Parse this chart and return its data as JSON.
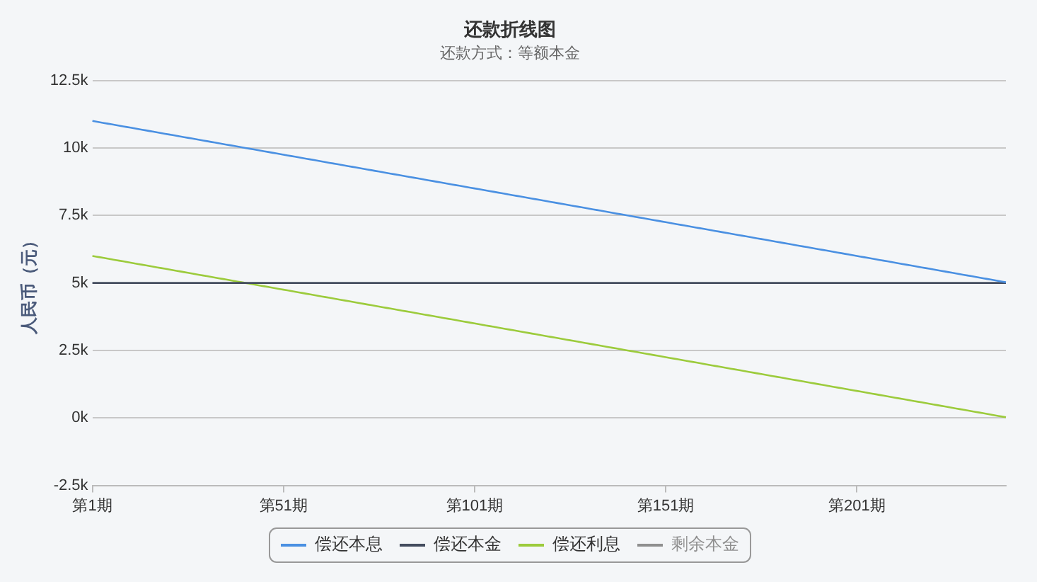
{
  "chart_data": {
    "type": "line",
    "title": "还款折线图",
    "subtitle": "还款方式：等额本金",
    "ylabel": "人民币（元）",
    "categories": [
      "第1期",
      null,
      null,
      null,
      null,
      null,
      null,
      null,
      null,
      null,
      null,
      null,
      null,
      null,
      null,
      null,
      null,
      null,
      null,
      null,
      null,
      null,
      null,
      null,
      null,
      null,
      null,
      null,
      null,
      null,
      null,
      null,
      null,
      null,
      null,
      null,
      null,
      null,
      null,
      null,
      null,
      null,
      null,
      null,
      null,
      null,
      null,
      null,
      null,
      null,
      "第51期",
      null,
      null,
      null,
      null,
      null,
      null,
      null,
      null,
      null,
      null,
      null,
      null,
      null,
      null,
      null,
      null,
      null,
      null,
      null,
      null,
      null,
      null,
      null,
      null,
      null,
      null,
      null,
      null,
      null,
      null,
      null,
      null,
      null,
      null,
      null,
      null,
      null,
      null,
      null,
      null,
      null,
      null,
      null,
      null,
      null,
      null,
      null,
      null,
      null,
      "第101期",
      null,
      null,
      null,
      null,
      null,
      null,
      null,
      null,
      null,
      null,
      null,
      null,
      null,
      null,
      null,
      null,
      null,
      null,
      null,
      null,
      null,
      null,
      null,
      null,
      null,
      null,
      null,
      null,
      null,
      null,
      null,
      null,
      null,
      null,
      null,
      null,
      null,
      null,
      null,
      null,
      null,
      null,
      null,
      null,
      null,
      null,
      null,
      null,
      null,
      "第151期",
      null,
      null,
      null,
      null,
      null,
      null,
      null,
      null,
      null,
      null,
      null,
      null,
      null,
      null,
      null,
      null,
      null,
      null,
      null,
      null,
      null,
      null,
      null,
      null,
      null,
      null,
      null,
      null,
      null,
      null,
      null,
      null,
      null,
      null,
      null,
      null,
      null,
      null,
      null,
      null,
      null,
      null,
      null,
      null,
      null,
      null,
      null,
      null,
      null,
      "第201期",
      null,
      null,
      null,
      null,
      null,
      null,
      null,
      null,
      null,
      null,
      null,
      null,
      null,
      null,
      null,
      null,
      null,
      null,
      null,
      null,
      null,
      null,
      null,
      null,
      null,
      null,
      null,
      null,
      null,
      null,
      null,
      null,
      null,
      null,
      null,
      null,
      null,
      null,
      null
    ],
    "ylim": [
      -2500,
      12500
    ],
    "yticks": [
      {
        "value": -2500,
        "label": "-2.5k"
      },
      {
        "value": 0,
        "label": "0k"
      },
      {
        "value": 2500,
        "label": "2.5k"
      },
      {
        "value": 5000,
        "label": "5k"
      },
      {
        "value": 7500,
        "label": "7.5k"
      },
      {
        "value": 10000,
        "label": "10k"
      },
      {
        "value": 12500,
        "label": "12.5k"
      }
    ],
    "series": [
      {
        "name": "偿还本息",
        "color": "#4a90e2",
        "values": [
          11000,
          10975,
          10950,
          10925,
          10900,
          10875,
          10850,
          10825,
          10800,
          10775,
          10750,
          10725,
          10700,
          10675,
          10650,
          10625,
          10600,
          10575,
          10550,
          10525,
          10500,
          10475,
          10450,
          10425,
          10400,
          10375,
          10350,
          10325,
          10300,
          10275,
          10250,
          10225,
          10200,
          10175,
          10150,
          10125,
          10100,
          10075,
          10050,
          10025,
          10000,
          9975,
          9950,
          9925,
          9900,
          9875,
          9850,
          9825,
          9800,
          9775,
          9750,
          9725,
          9700,
          9675,
          9650,
          9625,
          9600,
          9575,
          9550,
          9525,
          9500,
          9475,
          9450,
          9425,
          9400,
          9375,
          9350,
          9325,
          9300,
          9275,
          9250,
          9225,
          9200,
          9175,
          9150,
          9125,
          9100,
          9075,
          9050,
          9025,
          9000,
          8975,
          8950,
          8925,
          8900,
          8875,
          8850,
          8825,
          8800,
          8775,
          8750,
          8725,
          8700,
          8675,
          8650,
          8625,
          8600,
          8575,
          8550,
          8525,
          8500,
          8475,
          8450,
          8425,
          8400,
          8375,
          8350,
          8325,
          8300,
          8275,
          8250,
          8225,
          8200,
          8175,
          8150,
          8125,
          8100,
          8075,
          8050,
          8025,
          8000,
          7975,
          7950,
          7925,
          7900,
          7875,
          7850,
          7825,
          7800,
          7775,
          7750,
          7725,
          7700,
          7675,
          7650,
          7625,
          7600,
          7575,
          7550,
          7525,
          7500,
          7475,
          7450,
          7425,
          7400,
          7375,
          7350,
          7325,
          7300,
          7275,
          7250,
          7225,
          7200,
          7175,
          7150,
          7125,
          7100,
          7075,
          7050,
          7025,
          7000,
          6975,
          6950,
          6925,
          6900,
          6875,
          6850,
          6825,
          6800,
          6775,
          6750,
          6725,
          6700,
          6675,
          6650,
          6625,
          6600,
          6575,
          6550,
          6525,
          6500,
          6475,
          6450,
          6425,
          6400,
          6375,
          6350,
          6325,
          6300,
          6275,
          6250,
          6225,
          6200,
          6175,
          6150,
          6125,
          6100,
          6075,
          6050,
          6025,
          6000,
          5975,
          5950,
          5925,
          5900,
          5875,
          5850,
          5825,
          5800,
          5775,
          5750,
          5725,
          5700,
          5675,
          5650,
          5625,
          5600,
          5575,
          5550,
          5525,
          5500,
          5475,
          5450,
          5425,
          5400,
          5375,
          5350,
          5325,
          5300,
          5275,
          5250,
          5225,
          5200,
          5175,
          5150,
          5125,
          5100,
          5075,
          5050,
          5025
        ]
      },
      {
        "name": "偿还本金",
        "color": "#434c5e",
        "values": [
          5000,
          5000,
          5000,
          5000,
          5000,
          5000,
          5000,
          5000,
          5000,
          5000,
          5000,
          5000,
          5000,
          5000,
          5000,
          5000,
          5000,
          5000,
          5000,
          5000,
          5000,
          5000,
          5000,
          5000,
          5000,
          5000,
          5000,
          5000,
          5000,
          5000,
          5000,
          5000,
          5000,
          5000,
          5000,
          5000,
          5000,
          5000,
          5000,
          5000,
          5000,
          5000,
          5000,
          5000,
          5000,
          5000,
          5000,
          5000,
          5000,
          5000,
          5000,
          5000,
          5000,
          5000,
          5000,
          5000,
          5000,
          5000,
          5000,
          5000,
          5000,
          5000,
          5000,
          5000,
          5000,
          5000,
          5000,
          5000,
          5000,
          5000,
          5000,
          5000,
          5000,
          5000,
          5000,
          5000,
          5000,
          5000,
          5000,
          5000,
          5000,
          5000,
          5000,
          5000,
          5000,
          5000,
          5000,
          5000,
          5000,
          5000,
          5000,
          5000,
          5000,
          5000,
          5000,
          5000,
          5000,
          5000,
          5000,
          5000,
          5000,
          5000,
          5000,
          5000,
          5000,
          5000,
          5000,
          5000,
          5000,
          5000,
          5000,
          5000,
          5000,
          5000,
          5000,
          5000,
          5000,
          5000,
          5000,
          5000,
          5000,
          5000,
          5000,
          5000,
          5000,
          5000,
          5000,
          5000,
          5000,
          5000,
          5000,
          5000,
          5000,
          5000,
          5000,
          5000,
          5000,
          5000,
          5000,
          5000,
          5000,
          5000,
          5000,
          5000,
          5000,
          5000,
          5000,
          5000,
          5000,
          5000,
          5000,
          5000,
          5000,
          5000,
          5000,
          5000,
          5000,
          5000,
          5000,
          5000,
          5000,
          5000,
          5000,
          5000,
          5000,
          5000,
          5000,
          5000,
          5000,
          5000,
          5000,
          5000,
          5000,
          5000,
          5000,
          5000,
          5000,
          5000,
          5000,
          5000,
          5000,
          5000,
          5000,
          5000,
          5000,
          5000,
          5000,
          5000,
          5000,
          5000,
          5000,
          5000,
          5000,
          5000,
          5000,
          5000,
          5000,
          5000,
          5000,
          5000,
          5000,
          5000,
          5000,
          5000,
          5000,
          5000,
          5000,
          5000,
          5000,
          5000,
          5000,
          5000,
          5000,
          5000,
          5000,
          5000,
          5000,
          5000,
          5000,
          5000,
          5000,
          5000,
          5000,
          5000,
          5000,
          5000,
          5000,
          5000,
          5000,
          5000,
          5000,
          5000,
          5000,
          5000,
          5000,
          5000,
          5000,
          5000,
          5000,
          5000
        ]
      },
      {
        "name": "偿还利息",
        "color": "#9ccb3c",
        "values": [
          6000,
          5975,
          5950,
          5925,
          5900,
          5875,
          5850,
          5825,
          5800,
          5775,
          5750,
          5725,
          5700,
          5675,
          5650,
          5625,
          5600,
          5575,
          5550,
          5525,
          5500,
          5475,
          5450,
          5425,
          5400,
          5375,
          5350,
          5325,
          5300,
          5275,
          5250,
          5225,
          5200,
          5175,
          5150,
          5125,
          5100,
          5075,
          5050,
          5025,
          5000,
          4975,
          4950,
          4925,
          4900,
          4875,
          4850,
          4825,
          4800,
          4775,
          4750,
          4725,
          4700,
          4675,
          4650,
          4625,
          4600,
          4575,
          4550,
          4525,
          4500,
          4475,
          4450,
          4425,
          4400,
          4375,
          4350,
          4325,
          4300,
          4275,
          4250,
          4225,
          4200,
          4175,
          4150,
          4125,
          4100,
          4075,
          4050,
          4025,
          4000,
          3975,
          3950,
          3925,
          3900,
          3875,
          3850,
          3825,
          3800,
          3775,
          3750,
          3725,
          3700,
          3675,
          3650,
          3625,
          3600,
          3575,
          3550,
          3525,
          3500,
          3475,
          3450,
          3425,
          3400,
          3375,
          3350,
          3325,
          3300,
          3275,
          3250,
          3225,
          3200,
          3175,
          3150,
          3125,
          3100,
          3075,
          3050,
          3025,
          3000,
          2975,
          2950,
          2925,
          2900,
          2875,
          2850,
          2825,
          2800,
          2775,
          2750,
          2725,
          2700,
          2675,
          2650,
          2625,
          2600,
          2575,
          2550,
          2525,
          2500,
          2475,
          2450,
          2425,
          2400,
          2375,
          2350,
          2325,
          2300,
          2275,
          2250,
          2225,
          2200,
          2175,
          2150,
          2125,
          2100,
          2075,
          2050,
          2025,
          2000,
          1975,
          1950,
          1925,
          1900,
          1875,
          1850,
          1825,
          1800,
          1775,
          1750,
          1725,
          1700,
          1675,
          1650,
          1625,
          1600,
          1575,
          1550,
          1525,
          1500,
          1475,
          1450,
          1425,
          1400,
          1375,
          1350,
          1325,
          1300,
          1275,
          1250,
          1225,
          1200,
          1175,
          1150,
          1125,
          1100,
          1075,
          1050,
          1025,
          1000,
          975,
          950,
          925,
          900,
          875,
          850,
          825,
          800,
          775,
          750,
          725,
          700,
          675,
          650,
          625,
          600,
          575,
          550,
          525,
          500,
          475,
          450,
          425,
          400,
          375,
          350,
          325,
          300,
          275,
          250,
          225,
          200,
          175,
          150,
          125,
          100,
          75,
          50,
          25
        ]
      },
      {
        "name": "剩余本金",
        "color": "#8f8f8f",
        "values": [
          null,
          null,
          null,
          null,
          null,
          null,
          null,
          null,
          null,
          null,
          null,
          null,
          null,
          null,
          null,
          null,
          null,
          null,
          null,
          null,
          null,
          null,
          null,
          null,
          null,
          null,
          null,
          null,
          null,
          null,
          null,
          null,
          null,
          null,
          null,
          null,
          null,
          null,
          null,
          null,
          null,
          null,
          null,
          null,
          null,
          null,
          null,
          null,
          null,
          null,
          null,
          null,
          null,
          null,
          null,
          null,
          null,
          null,
          null,
          null,
          null,
          null,
          null,
          null,
          null,
          null,
          null,
          null,
          null,
          null,
          null,
          null,
          null,
          null,
          null,
          null,
          null,
          null,
          null,
          null,
          null,
          null,
          null,
          null,
          null,
          null,
          null,
          null,
          null,
          null,
          null,
          null,
          null,
          null,
          null,
          null,
          null,
          null,
          null,
          null,
          null,
          null,
          null,
          null,
          null,
          null,
          null,
          null,
          null,
          null,
          null,
          null,
          null,
          null,
          null,
          null,
          null,
          null,
          null,
          null,
          null,
          null,
          null,
          null,
          null,
          null,
          null,
          null,
          null,
          null,
          null,
          null,
          null,
          null,
          null,
          null,
          null,
          null,
          null,
          null,
          null,
          null,
          null,
          null,
          null,
          null,
          null,
          null,
          null,
          null,
          null,
          null,
          null,
          null,
          null,
          null,
          null,
          null,
          null,
          null,
          null,
          null,
          null,
          null,
          null,
          null,
          null,
          null,
          null,
          null,
          null,
          null,
          null,
          null,
          null,
          null,
          null,
          null,
          null,
          null,
          null,
          null,
          null,
          null,
          null,
          null,
          null,
          null,
          null,
          null,
          null,
          null,
          null,
          null,
          null,
          null,
          null,
          null,
          null,
          null,
          null,
          null,
          null,
          null,
          null,
          null,
          null,
          null,
          null,
          null,
          null,
          null,
          null,
          null,
          null,
          null,
          null,
          null,
          null,
          null,
          null,
          null,
          null,
          null,
          null,
          null,
          null,
          null,
          null,
          null,
          null,
          null,
          null,
          null,
          null,
          null,
          null,
          null,
          null,
          null
        ]
      }
    ],
    "grid": "y",
    "legend": "bottom",
    "marker": "none",
    "line_style": "solid"
  }
}
